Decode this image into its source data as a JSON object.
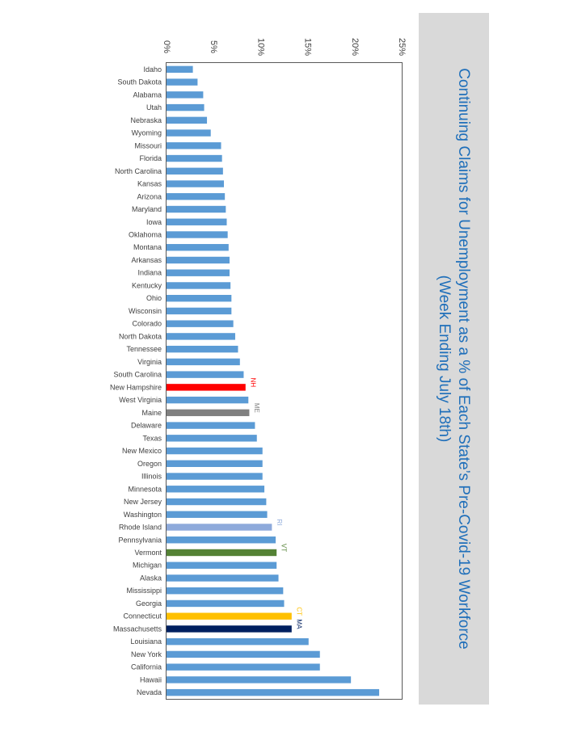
{
  "chart_data": {
    "type": "bar",
    "orientation": "horizontal",
    "title_line1": "Continuing Claims for Unemployment as a % of Each State’s Pre-Covid-19 Workforce",
    "title_line2": "(Week Ending July 18th)",
    "xlim": [
      0,
      25
    ],
    "x_ticks": [
      "0%",
      "5%",
      "10%",
      "15%",
      "20%",
      "25%"
    ],
    "grid": false,
    "categories": [
      "Idaho",
      "South Dakota",
      "Alabama",
      "Utah",
      "Nebraska",
      "Wyoming",
      "Missouri",
      "Florida",
      "North Carolina",
      "Kansas",
      "Arizona",
      "Maryland",
      "Iowa",
      "Oklahoma",
      "Montana",
      "Arkansas",
      "Indiana",
      "Kentucky",
      "Ohio",
      "Wisconsin",
      "Colorado",
      "North Dakota",
      "Tennessee",
      "Virginia",
      "South Carolina",
      "New Hampshire",
      "West Virginia",
      "Maine",
      "Delaware",
      "Texas",
      "New Mexico",
      "Oregon",
      "Illinois",
      "Minnesota",
      "New Jersey",
      "Washington",
      "Rhode Island",
      "Pennsylvania",
      "Vermont",
      "Michigan",
      "Alaska",
      "Mississippi",
      "Georgia",
      "Connecticut",
      "Massachusetts",
      "Louisiana",
      "New York",
      "California",
      "Hawaii",
      "Nevada"
    ],
    "values": [
      2.8,
      3.3,
      3.9,
      4.0,
      4.3,
      4.7,
      5.8,
      5.9,
      6.0,
      6.1,
      6.2,
      6.3,
      6.4,
      6.5,
      6.6,
      6.7,
      6.7,
      6.8,
      6.9,
      6.9,
      7.1,
      7.3,
      7.6,
      7.8,
      8.2,
      8.4,
      8.7,
      8.8,
      9.4,
      9.6,
      10.2,
      10.2,
      10.2,
      10.4,
      10.6,
      10.7,
      11.2,
      11.6,
      11.7,
      11.7,
      11.9,
      12.4,
      12.5,
      13.3,
      13.3,
      15.1,
      16.3,
      16.3,
      19.6,
      22.6
    ],
    "colors": {
      "default": "#5b9bd5",
      "New Hampshire": "#ff0000",
      "Maine": "#808080",
      "Rhode Island": "#8eaadb",
      "Vermont": "#548235",
      "Connecticut": "#ffc000",
      "Massachusetts": "#002060"
    },
    "annotations": [
      {
        "state": "New Hampshire",
        "text": "NH",
        "color": "#ff0000"
      },
      {
        "state": "Maine",
        "text": "ME",
        "color": "#808080"
      },
      {
        "state": "Rhode Island",
        "text": "RI",
        "color": "#8eaadb"
      },
      {
        "state": "Vermont",
        "text": "VT",
        "color": "#548235"
      },
      {
        "state": "Connecticut",
        "text": "CT",
        "color": "#ffc000"
      },
      {
        "state": "Massachusetts",
        "text": "MA",
        "color": "#002060"
      }
    ]
  }
}
